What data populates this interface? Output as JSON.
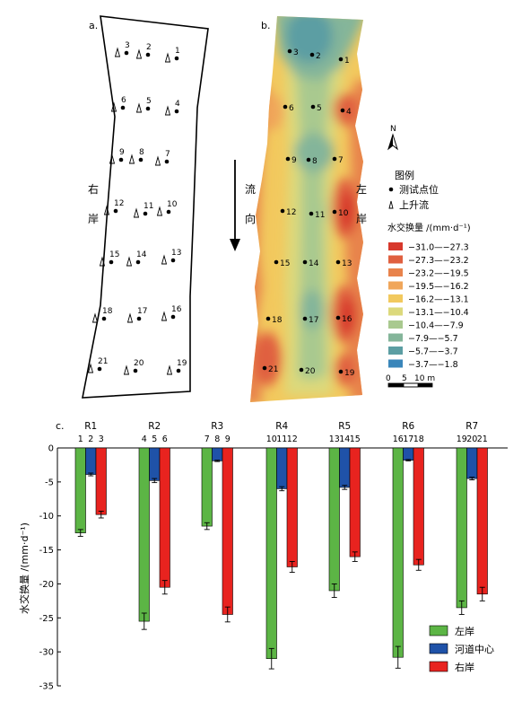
{
  "panels": {
    "a": "a.",
    "b": "b.",
    "c": "c."
  },
  "bank_labels": {
    "right": [
      "右",
      "岸"
    ],
    "left": [
      "左",
      "岸"
    ]
  },
  "flow_label": [
    "流",
    "向"
  ],
  "north_label": "N",
  "legend_map": {
    "title": "图例",
    "point_label": "测试点位",
    "upwelling_label": "上升流",
    "scale_title": "水交换量 /(mm·d⁻¹)",
    "bins": [
      {
        "label": "−31.0—−27.3",
        "color": "#d7382c"
      },
      {
        "label": "−27.3—−23.2",
        "color": "#e06040"
      },
      {
        "label": "−23.2—−19.5",
        "color": "#e8834c"
      },
      {
        "label": "−19.5—−16.2",
        "color": "#f0a65a"
      },
      {
        "label": "−16.2—−13.1",
        "color": "#f2c95e"
      },
      {
        "label": "−13.1—−10.4",
        "color": "#dcd97c"
      },
      {
        "label": "−10.4—−7.9",
        "color": "#a9c98f"
      },
      {
        "label": "−7.9—−5.7",
        "color": "#84b59a"
      },
      {
        "label": "−5.7—−3.7",
        "color": "#5c9ea3"
      },
      {
        "label": "−3.7—−1.8",
        "color": "#3a86ba"
      }
    ],
    "scalebar_labels": [
      "0",
      "5",
      "10 m"
    ]
  },
  "map_points": [
    {
      "id": "1",
      "upwelling": true
    },
    {
      "id": "2",
      "upwelling": true
    },
    {
      "id": "3",
      "upwelling": true
    },
    {
      "id": "4",
      "upwelling": true
    },
    {
      "id": "5",
      "upwelling": true
    },
    {
      "id": "6",
      "upwelling": true
    },
    {
      "id": "7",
      "upwelling": true
    },
    {
      "id": "8",
      "upwelling": true
    },
    {
      "id": "9",
      "upwelling": true
    },
    {
      "id": "10",
      "upwelling": true
    },
    {
      "id": "11",
      "upwelling": true
    },
    {
      "id": "12",
      "upwelling": true
    },
    {
      "id": "13",
      "upwelling": true
    },
    {
      "id": "14",
      "upwelling": true
    },
    {
      "id": "15",
      "upwelling": true
    },
    {
      "id": "16",
      "upwelling": true
    },
    {
      "id": "17",
      "upwelling": true
    },
    {
      "id": "18",
      "upwelling": true
    },
    {
      "id": "19",
      "upwelling": true
    },
    {
      "id": "20",
      "upwelling": true
    },
    {
      "id": "21",
      "upwelling": true
    }
  ],
  "chart_data": {
    "type": "bar",
    "title": "",
    "xlabel": "",
    "ylabel": "水交换量 /(mm·d⁻¹)",
    "ylim": [
      -35,
      0
    ],
    "yticks": [
      0,
      -5,
      -10,
      -15,
      -20,
      -25,
      -30,
      -35
    ],
    "groups": [
      {
        "name": "R1",
        "points": [
          "1",
          "2",
          "3"
        ]
      },
      {
        "name": "R2",
        "points": [
          "4",
          "5",
          "6"
        ]
      },
      {
        "name": "R3",
        "points": [
          "7",
          "8",
          "9"
        ]
      },
      {
        "name": "R4",
        "points": [
          "10",
          "11",
          "12"
        ]
      },
      {
        "name": "R5",
        "points": [
          "13",
          "14",
          "15"
        ]
      },
      {
        "name": "R6",
        "points": [
          "16",
          "17",
          "18"
        ]
      },
      {
        "name": "R7",
        "points": [
          "19",
          "20",
          "21"
        ]
      }
    ],
    "series": [
      {
        "name": "左岸",
        "color": "#5cb545",
        "values": [
          -12.5,
          -25.5,
          -11.5,
          -31.0,
          -21.0,
          -30.8,
          -23.5
        ],
        "errors": [
          0.5,
          1.2,
          0.5,
          1.5,
          1.0,
          1.6,
          1.0
        ]
      },
      {
        "name": "河道中心",
        "color": "#1f52a8",
        "values": [
          -3.9,
          -4.8,
          -1.9,
          -6.0,
          -5.8,
          -1.8,
          -4.5
        ],
        "errors": [
          0.2,
          0.3,
          0.1,
          0.3,
          0.3,
          0.1,
          0.2
        ]
      },
      {
        "name": "右岸",
        "color": "#e8231f",
        "values": [
          -9.8,
          -20.5,
          -24.5,
          -17.5,
          -16.0,
          -17.2,
          -21.5
        ],
        "errors": [
          0.5,
          1.0,
          1.1,
          0.8,
          0.7,
          0.8,
          1.0
        ]
      }
    ],
    "legend_position": "bottom-right",
    "grid": false
  }
}
